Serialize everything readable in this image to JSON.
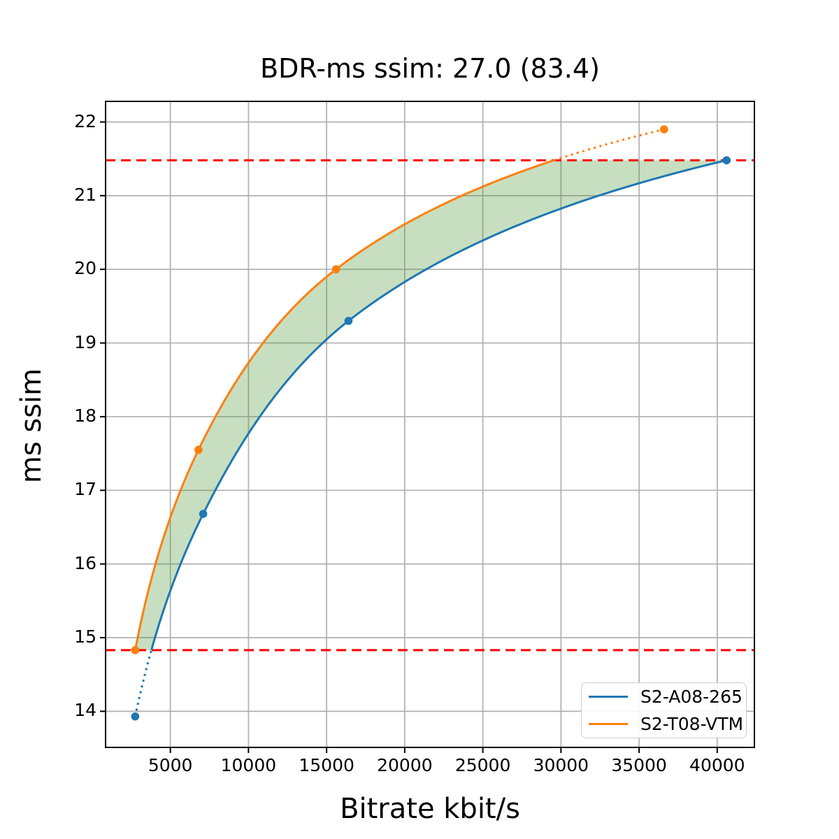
{
  "title": "BDR-ms ssim: 27.0 (83.4)",
  "chart_data": {
    "type": "line",
    "title": "BDR-ms ssim: 27.0 (83.4)",
    "xlabel": "Bitrate kbit/s",
    "ylabel": "ms ssim",
    "xlim": [
      854,
      42380
    ],
    "ylim": [
      13.51,
      22.28
    ],
    "x_ticks": [
      5000,
      10000,
      15000,
      20000,
      25000,
      30000,
      35000,
      40000
    ],
    "y_ticks": [
      14,
      15,
      16,
      17,
      18,
      19,
      20,
      21,
      22
    ],
    "grid": true,
    "grid_color": "#b0b0b0",
    "legend_position": "lower right",
    "interpolation": "pchip-log-x",
    "series": [
      {
        "name": "S2-A08-265",
        "color": "#1f77b4",
        "x": [
          2750,
          7100,
          16400,
          40600
        ],
        "y": [
          13.93,
          16.68,
          19.3,
          21.48
        ]
      },
      {
        "name": "S2-T08-VTM",
        "color": "#ff7f0e",
        "x": [
          2750,
          6800,
          15600,
          36600
        ],
        "y": [
          14.83,
          17.55,
          20.0,
          21.9
        ]
      }
    ],
    "overlap_band": {
      "y_low": 14.83,
      "y_high": 21.48,
      "fill_color": "rgba(70,148,48,0.30)",
      "note": "solid curve segments inside band, dotted outside; shaded area between curves"
    },
    "hlines": [
      {
        "y": 21.48,
        "color": "#ff0000",
        "style": "dashed"
      },
      {
        "y": 14.83,
        "color": "#ff0000",
        "style": "dashed"
      }
    ]
  }
}
